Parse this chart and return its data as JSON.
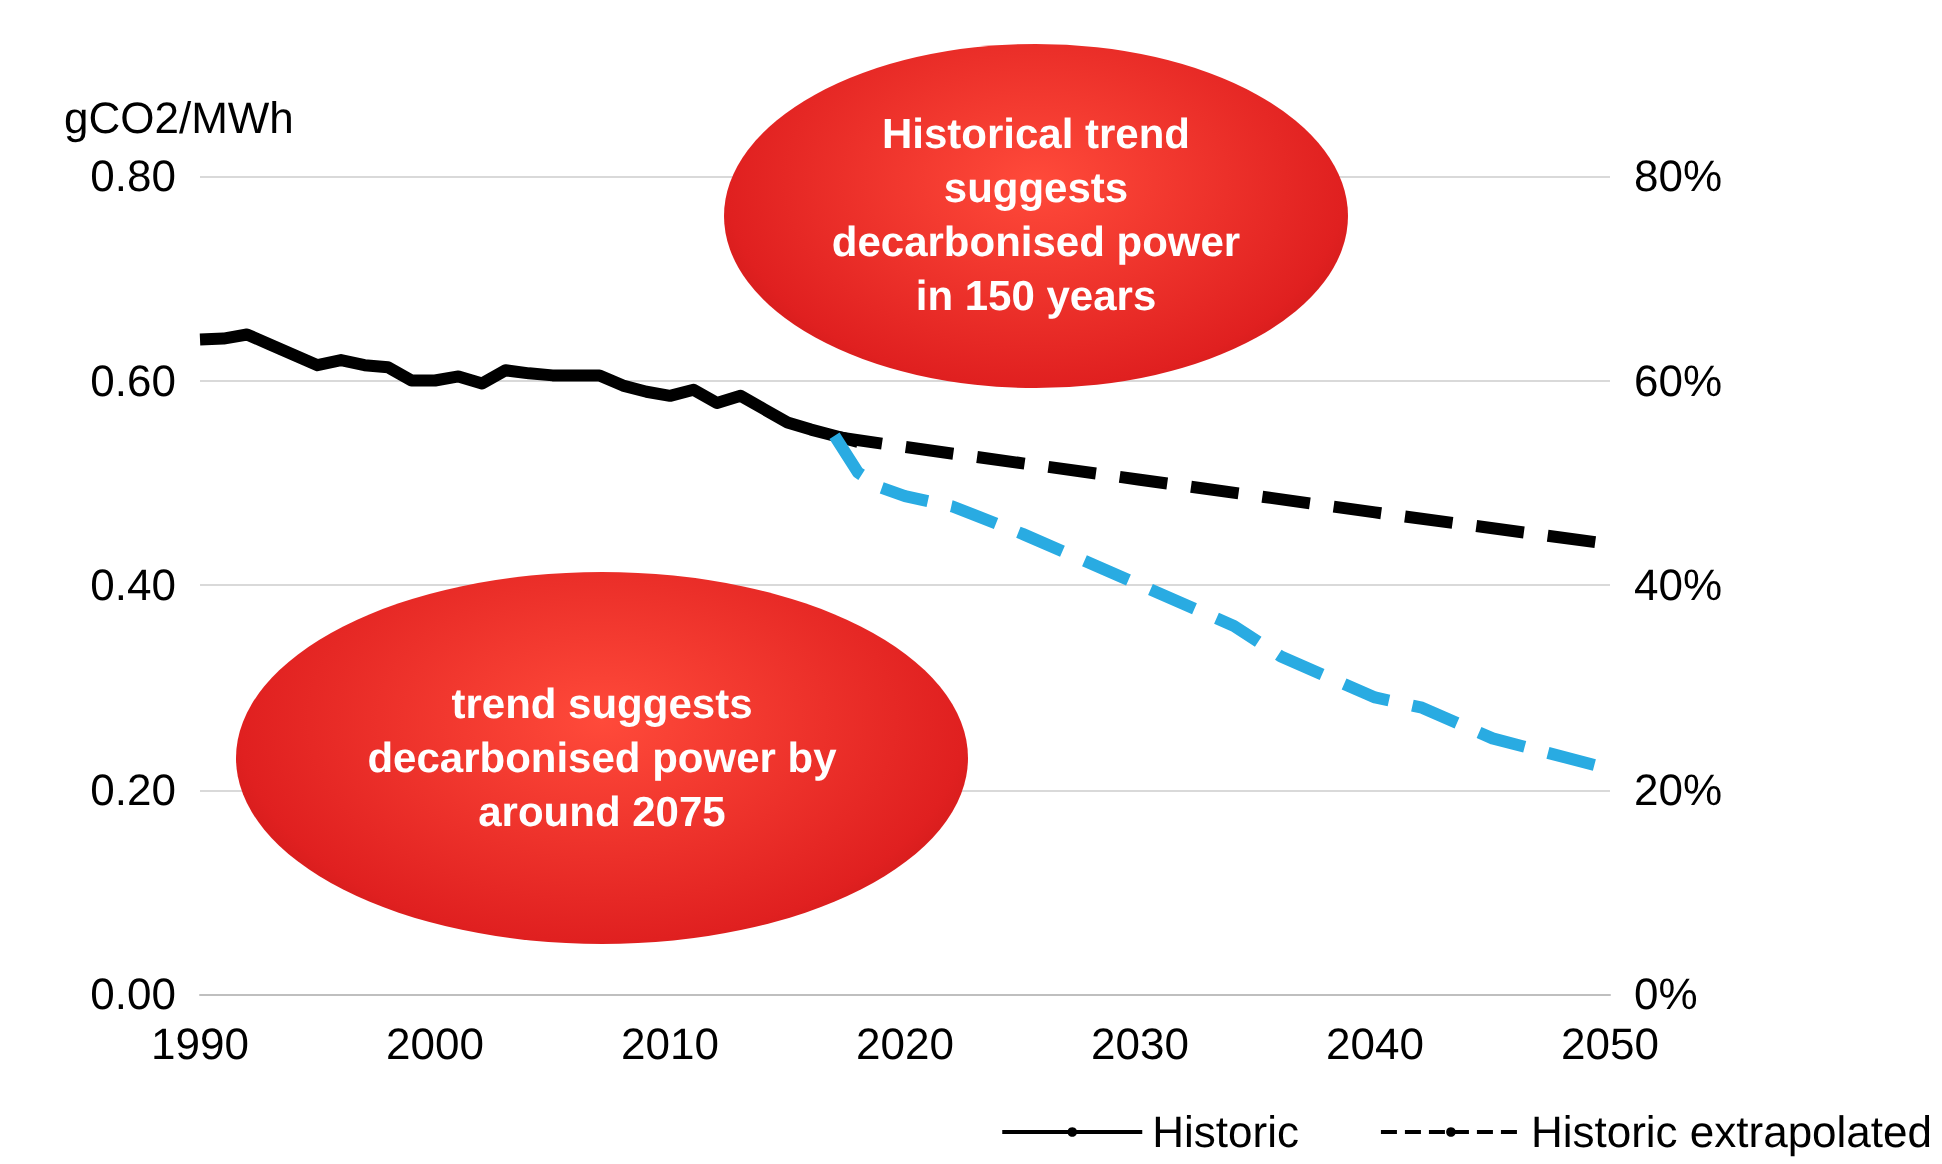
{
  "chart_data": {
    "type": "line",
    "ylabel": "gCO2/MWh",
    "xlim": [
      1990,
      2050
    ],
    "xticks": [
      1990,
      2000,
      2010,
      2020,
      2030,
      2040,
      2050
    ],
    "ylim": [
      0,
      0.8
    ],
    "yticks": [
      {
        "value": 0,
        "label": "0.00"
      },
      {
        "value": 0.2,
        "label": "0.20"
      },
      {
        "value": 0.4,
        "label": "0.40"
      },
      {
        "value": 0.6,
        "label": "0.60"
      },
      {
        "value": 0.8,
        "label": "0.80"
      }
    ],
    "y2lim": [
      0,
      80
    ],
    "y2ticks": [
      {
        "value": 0,
        "label": "0%"
      },
      {
        "value": 20,
        "label": "20%"
      },
      {
        "value": 40,
        "label": "40%"
      },
      {
        "value": 60,
        "label": "60%"
      },
      {
        "value": 80,
        "label": "80%"
      }
    ],
    "grid": "y",
    "legend": "bottom right",
    "marker": "none",
    "annotations": [
      "Historical trend suggests decarbonised power in 150 years",
      "trend suggests decarbonised power by around 2075"
    ],
    "series": [
      {
        "name": "Historic",
        "color": "#000000",
        "line_style": "solid",
        "x": [
          1990,
          1991,
          1992,
          1993,
          1994,
          1995,
          1996,
          1997,
          1998,
          1999,
          2000,
          2001,
          2002,
          2003,
          2004,
          2005,
          2006,
          2007,
          2008,
          2009,
          2010,
          2011,
          2012,
          2013,
          2014,
          2015,
          2016,
          2017,
          2018
        ],
        "values": [
          0.64,
          0.641,
          0.645,
          0.635,
          0.625,
          0.615,
          0.62,
          0.615,
          0.613,
          0.6,
          0.6,
          0.604,
          0.597,
          0.61,
          0.607,
          0.605,
          0.605,
          0.605,
          0.595,
          0.589,
          0.585,
          0.591,
          0.578,
          0.585,
          0.572,
          0.559,
          0.552,
          0.546,
          0.54
        ]
      },
      {
        "name": "Historic extrapolated",
        "color": "#000000",
        "line_style": "dashed",
        "x": [
          2017,
          2020,
          2030,
          2040,
          2050
        ],
        "values": [
          0.545,
          0.535,
          0.503,
          0.471,
          0.44
        ]
      },
      {
        "color": "#29abe2",
        "line_style": "dashed",
        "x": [
          2017,
          2018,
          2019,
          2020,
          2022,
          2025,
          2027,
          2030,
          2034,
          2036,
          2040,
          2042,
          2045,
          2050
        ],
        "values": [
          0.546,
          0.51,
          0.495,
          0.487,
          0.477,
          0.45,
          0.43,
          0.4,
          0.36,
          0.33,
          0.29,
          0.28,
          0.25,
          0.22
        ]
      }
    ]
  }
}
